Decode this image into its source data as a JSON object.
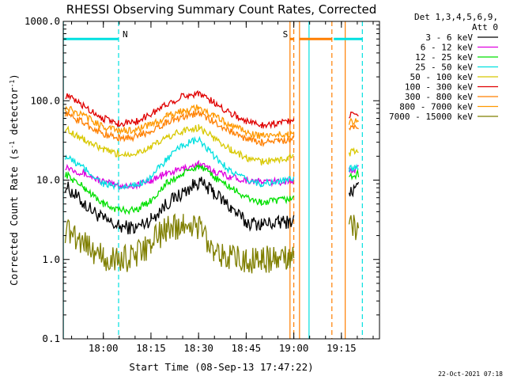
{
  "chart_data": {
    "type": "line",
    "title": "RHESSI Observing Summary Count Rates, Corrected",
    "xlabel": "Start Time (08-Sep-13 17:47:22)",
    "ylabel": "Corrected Count Rate (s⁻¹ detector⁻¹)",
    "ylabel_parts": {
      "a": "Corrected Count Rate (s",
      "b": "-1",
      "c": " detector",
      "d": "-1",
      "e": ")"
    },
    "y_scale": "log",
    "ylim": [
      0.1,
      1000
    ],
    "y_ticks": [
      "0.1",
      "1.0",
      "10.0",
      "100.0",
      "1000.0"
    ],
    "xlim": [
      "17:47:22",
      "19:27:00"
    ],
    "x_ticks": [
      "18:00",
      "18:15",
      "18:30",
      "18:45",
      "19:00",
      "19:15"
    ],
    "legend_header": [
      "Det 1,3,4,5,6,9,",
      "Att 0"
    ],
    "series": [
      {
        "name": "3 - 6 keV",
        "color": "#000000",
        "points": [
          [
            17.8,
            8.5
          ],
          [
            17.9,
            5
          ],
          [
            18.0,
            3.2
          ],
          [
            18.08,
            2.6
          ],
          [
            18.17,
            2.5
          ],
          [
            18.25,
            3.2
          ],
          [
            18.33,
            5
          ],
          [
            18.42,
            7
          ],
          [
            18.5,
            9.5
          ],
          [
            18.58,
            7
          ],
          [
            18.67,
            4.5
          ],
          [
            18.75,
            2.9
          ],
          [
            18.83,
            2.8
          ],
          [
            18.92,
            2.9
          ],
          [
            18.97,
            3.0
          ],
          [
            19.0,
            3.1
          ],
          [
            19.08,
            null
          ],
          [
            19.2,
            null
          ],
          [
            19.29,
            7
          ],
          [
            19.34,
            8
          ]
        ]
      },
      {
        "name": "6 - 12 keV",
        "color": "#e000e0",
        "points": [
          [
            17.8,
            15
          ],
          [
            17.9,
            12
          ],
          [
            18.0,
            9.5
          ],
          [
            18.08,
            8.5
          ],
          [
            18.17,
            8.5
          ],
          [
            18.25,
            10
          ],
          [
            18.33,
            12
          ],
          [
            18.42,
            14
          ],
          [
            18.5,
            16
          ],
          [
            18.58,
            13
          ],
          [
            18.67,
            11
          ],
          [
            18.75,
            10
          ],
          [
            18.83,
            9.5
          ],
          [
            18.92,
            9.5
          ],
          [
            18.97,
            9.8
          ],
          [
            19.0,
            10
          ],
          [
            19.08,
            null
          ],
          [
            19.2,
            null
          ],
          [
            19.29,
            13
          ],
          [
            19.34,
            14
          ]
        ]
      },
      {
        "name": "12 - 25 keV",
        "color": "#00e000",
        "points": [
          [
            17.8,
            12
          ],
          [
            17.9,
            8
          ],
          [
            18.0,
            5
          ],
          [
            18.08,
            4.2
          ],
          [
            18.17,
            4.2
          ],
          [
            18.25,
            5.5
          ],
          [
            18.33,
            9
          ],
          [
            18.42,
            12
          ],
          [
            18.5,
            15
          ],
          [
            18.58,
            11
          ],
          [
            18.67,
            8
          ],
          [
            18.75,
            6
          ],
          [
            18.83,
            5.2
          ],
          [
            18.92,
            5.5
          ],
          [
            18.97,
            5.8
          ],
          [
            19.0,
            6
          ],
          [
            19.08,
            null
          ],
          [
            19.2,
            null
          ],
          [
            19.29,
            11
          ],
          [
            19.34,
            12
          ]
        ]
      },
      {
        "name": "25 - 50 keV",
        "color": "#00e0e0",
        "points": [
          [
            17.8,
            20
          ],
          [
            17.9,
            14
          ],
          [
            18.0,
            9
          ],
          [
            18.08,
            8
          ],
          [
            18.17,
            8.5
          ],
          [
            18.25,
            11
          ],
          [
            18.33,
            18
          ],
          [
            18.42,
            28
          ],
          [
            18.5,
            32
          ],
          [
            18.58,
            20
          ],
          [
            18.67,
            13
          ],
          [
            18.75,
            10
          ],
          [
            18.83,
            9
          ],
          [
            18.92,
            9.5
          ],
          [
            18.97,
            10
          ],
          [
            19.0,
            10.5
          ],
          [
            19.08,
            null
          ],
          [
            19.2,
            null
          ],
          [
            19.29,
            14
          ],
          [
            19.34,
            15
          ]
        ]
      },
      {
        "name": "50 - 100 keV",
        "color": "#d8c800",
        "points": [
          [
            17.8,
            45
          ],
          [
            17.9,
            32
          ],
          [
            18.0,
            24
          ],
          [
            18.08,
            21
          ],
          [
            18.17,
            22
          ],
          [
            18.25,
            26
          ],
          [
            18.33,
            34
          ],
          [
            18.42,
            42
          ],
          [
            18.5,
            46
          ],
          [
            18.58,
            34
          ],
          [
            18.67,
            24
          ],
          [
            18.75,
            19
          ],
          [
            18.83,
            17
          ],
          [
            18.92,
            18
          ],
          [
            18.97,
            19
          ],
          [
            19.0,
            20
          ],
          [
            19.08,
            null
          ],
          [
            19.2,
            null
          ],
          [
            19.29,
            22
          ],
          [
            19.34,
            24
          ]
        ]
      },
      {
        "name": "100 - 300 keV",
        "color": "#e00000",
        "points": [
          [
            17.8,
            118
          ],
          [
            17.9,
            85
          ],
          [
            18.0,
            60
          ],
          [
            18.08,
            52
          ],
          [
            18.17,
            54
          ],
          [
            18.25,
            68
          ],
          [
            18.33,
            90
          ],
          [
            18.42,
            115
          ],
          [
            18.5,
            125
          ],
          [
            18.58,
            95
          ],
          [
            18.67,
            70
          ],
          [
            18.75,
            55
          ],
          [
            18.83,
            50
          ],
          [
            18.92,
            52
          ],
          [
            18.97,
            56
          ],
          [
            19.0,
            58
          ],
          [
            19.08,
            null
          ],
          [
            19.2,
            null
          ],
          [
            19.29,
            66
          ],
          [
            19.34,
            68
          ]
        ]
      },
      {
        "name": "300 - 800 keV",
        "color": "#ff7f00",
        "points": [
          [
            17.8,
            70
          ],
          [
            17.9,
            52
          ],
          [
            18.0,
            38
          ],
          [
            18.08,
            34
          ],
          [
            18.17,
            35
          ],
          [
            18.25,
            42
          ],
          [
            18.33,
            53
          ],
          [
            18.42,
            64
          ],
          [
            18.5,
            70
          ],
          [
            18.58,
            54
          ],
          [
            18.67,
            41
          ],
          [
            18.75,
            33
          ],
          [
            18.83,
            30
          ],
          [
            18.92,
            31
          ],
          [
            18.97,
            32
          ],
          [
            19.0,
            33
          ],
          [
            19.08,
            null
          ],
          [
            19.2,
            null
          ],
          [
            19.29,
            44
          ],
          [
            19.34,
            46
          ]
        ]
      },
      {
        "name": "800 - 7000 keV",
        "color": "#ff9900",
        "points": [
          [
            17.8,
            82
          ],
          [
            17.9,
            64
          ],
          [
            18.0,
            47
          ],
          [
            18.08,
            42
          ],
          [
            18.17,
            43
          ],
          [
            18.25,
            50
          ],
          [
            18.33,
            63
          ],
          [
            18.42,
            75
          ],
          [
            18.5,
            82
          ],
          [
            18.58,
            64
          ],
          [
            18.67,
            49
          ],
          [
            18.75,
            40
          ],
          [
            18.83,
            36
          ],
          [
            18.92,
            37
          ],
          [
            18.97,
            38
          ],
          [
            19.0,
            40
          ],
          [
            19.08,
            null
          ],
          [
            19.2,
            null
          ],
          [
            19.29,
            54
          ],
          [
            19.34,
            56
          ]
        ]
      },
      {
        "name": "7000 - 15000 keV",
        "color": "#7f7f00",
        "points": [
          [
            17.8,
            2.4
          ],
          [
            17.9,
            1.7
          ],
          [
            18.0,
            1.0
          ],
          [
            18.08,
            1.0
          ],
          [
            18.17,
            1.1
          ],
          [
            18.25,
            1.6
          ],
          [
            18.33,
            2.4
          ],
          [
            18.42,
            2.8
          ],
          [
            18.5,
            2.6
          ],
          [
            18.58,
            1.4
          ],
          [
            18.67,
            1.0
          ],
          [
            18.75,
            1.0
          ],
          [
            18.83,
            1.0
          ],
          [
            18.92,
            1.0
          ],
          [
            18.97,
            1.0
          ],
          [
            19.0,
            1.0
          ],
          [
            19.08,
            null
          ],
          [
            19.2,
            null
          ],
          [
            19.29,
            2.5
          ],
          [
            19.34,
            2.6
          ]
        ]
      }
    ],
    "flags": [
      {
        "label": "N",
        "color": "#00e0e0",
        "start": 17.79,
        "end": 18.08
      },
      {
        "label": "S",
        "color": "#ff7f00",
        "start": 18.98,
        "end": 19.0
      },
      {
        "label": "",
        "color": "#ff7f00",
        "start": 19.03,
        "end": 19.2
      },
      {
        "label": "",
        "color": "#00e0e0",
        "start": 19.21,
        "end": 19.36
      }
    ],
    "vlines": [
      {
        "t": 17.79,
        "color": "#00e0e0",
        "style": "solid"
      },
      {
        "t": 18.08,
        "color": "#00e0e0",
        "style": "dashed"
      },
      {
        "t": 18.98,
        "color": "#ff7f00",
        "style": "solid"
      },
      {
        "t": 19.0,
        "color": "#ff7f00",
        "style": "dashed"
      },
      {
        "t": 19.03,
        "color": "#ff7f00",
        "style": "solid"
      },
      {
        "t": 19.08,
        "color": "#00e0e0",
        "style": "solid"
      },
      {
        "t": 19.2,
        "color": "#ff7f00",
        "style": "dashed"
      },
      {
        "t": 19.27,
        "color": "#ff7f00",
        "style": "solid"
      },
      {
        "t": 19.36,
        "color": "#00e0e0",
        "style": "dashed"
      }
    ],
    "grid": false,
    "legend_position": "right"
  },
  "footer_timestamp": "22-Oct-2021 07:18"
}
